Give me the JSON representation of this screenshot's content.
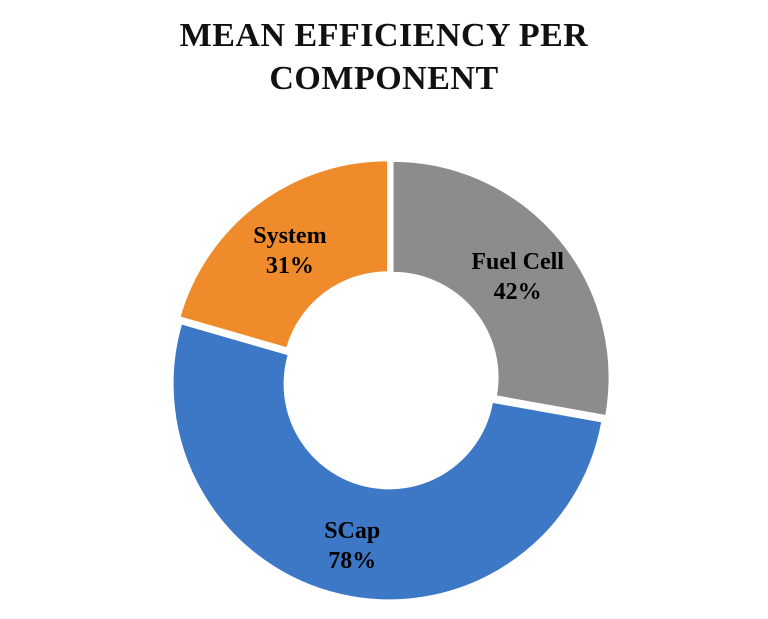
{
  "title_lines": [
    "MEAN EFFICIENCY PER",
    "COMPONENT"
  ],
  "chart_data": {
    "type": "pie",
    "variant": "donut",
    "title": "MEAN EFFICIENCY PER COMPONENT",
    "slices": [
      {
        "category": "Fuel Cell",
        "label": "42%",
        "value": 42,
        "color": "#8c8c8c"
      },
      {
        "category": "SCap",
        "label": "78%",
        "value": 78,
        "color": "#3d78c6"
      },
      {
        "category": "System",
        "label": "31%",
        "value": 31,
        "color": "#f08b2c"
      }
    ],
    "legend": "none"
  }
}
